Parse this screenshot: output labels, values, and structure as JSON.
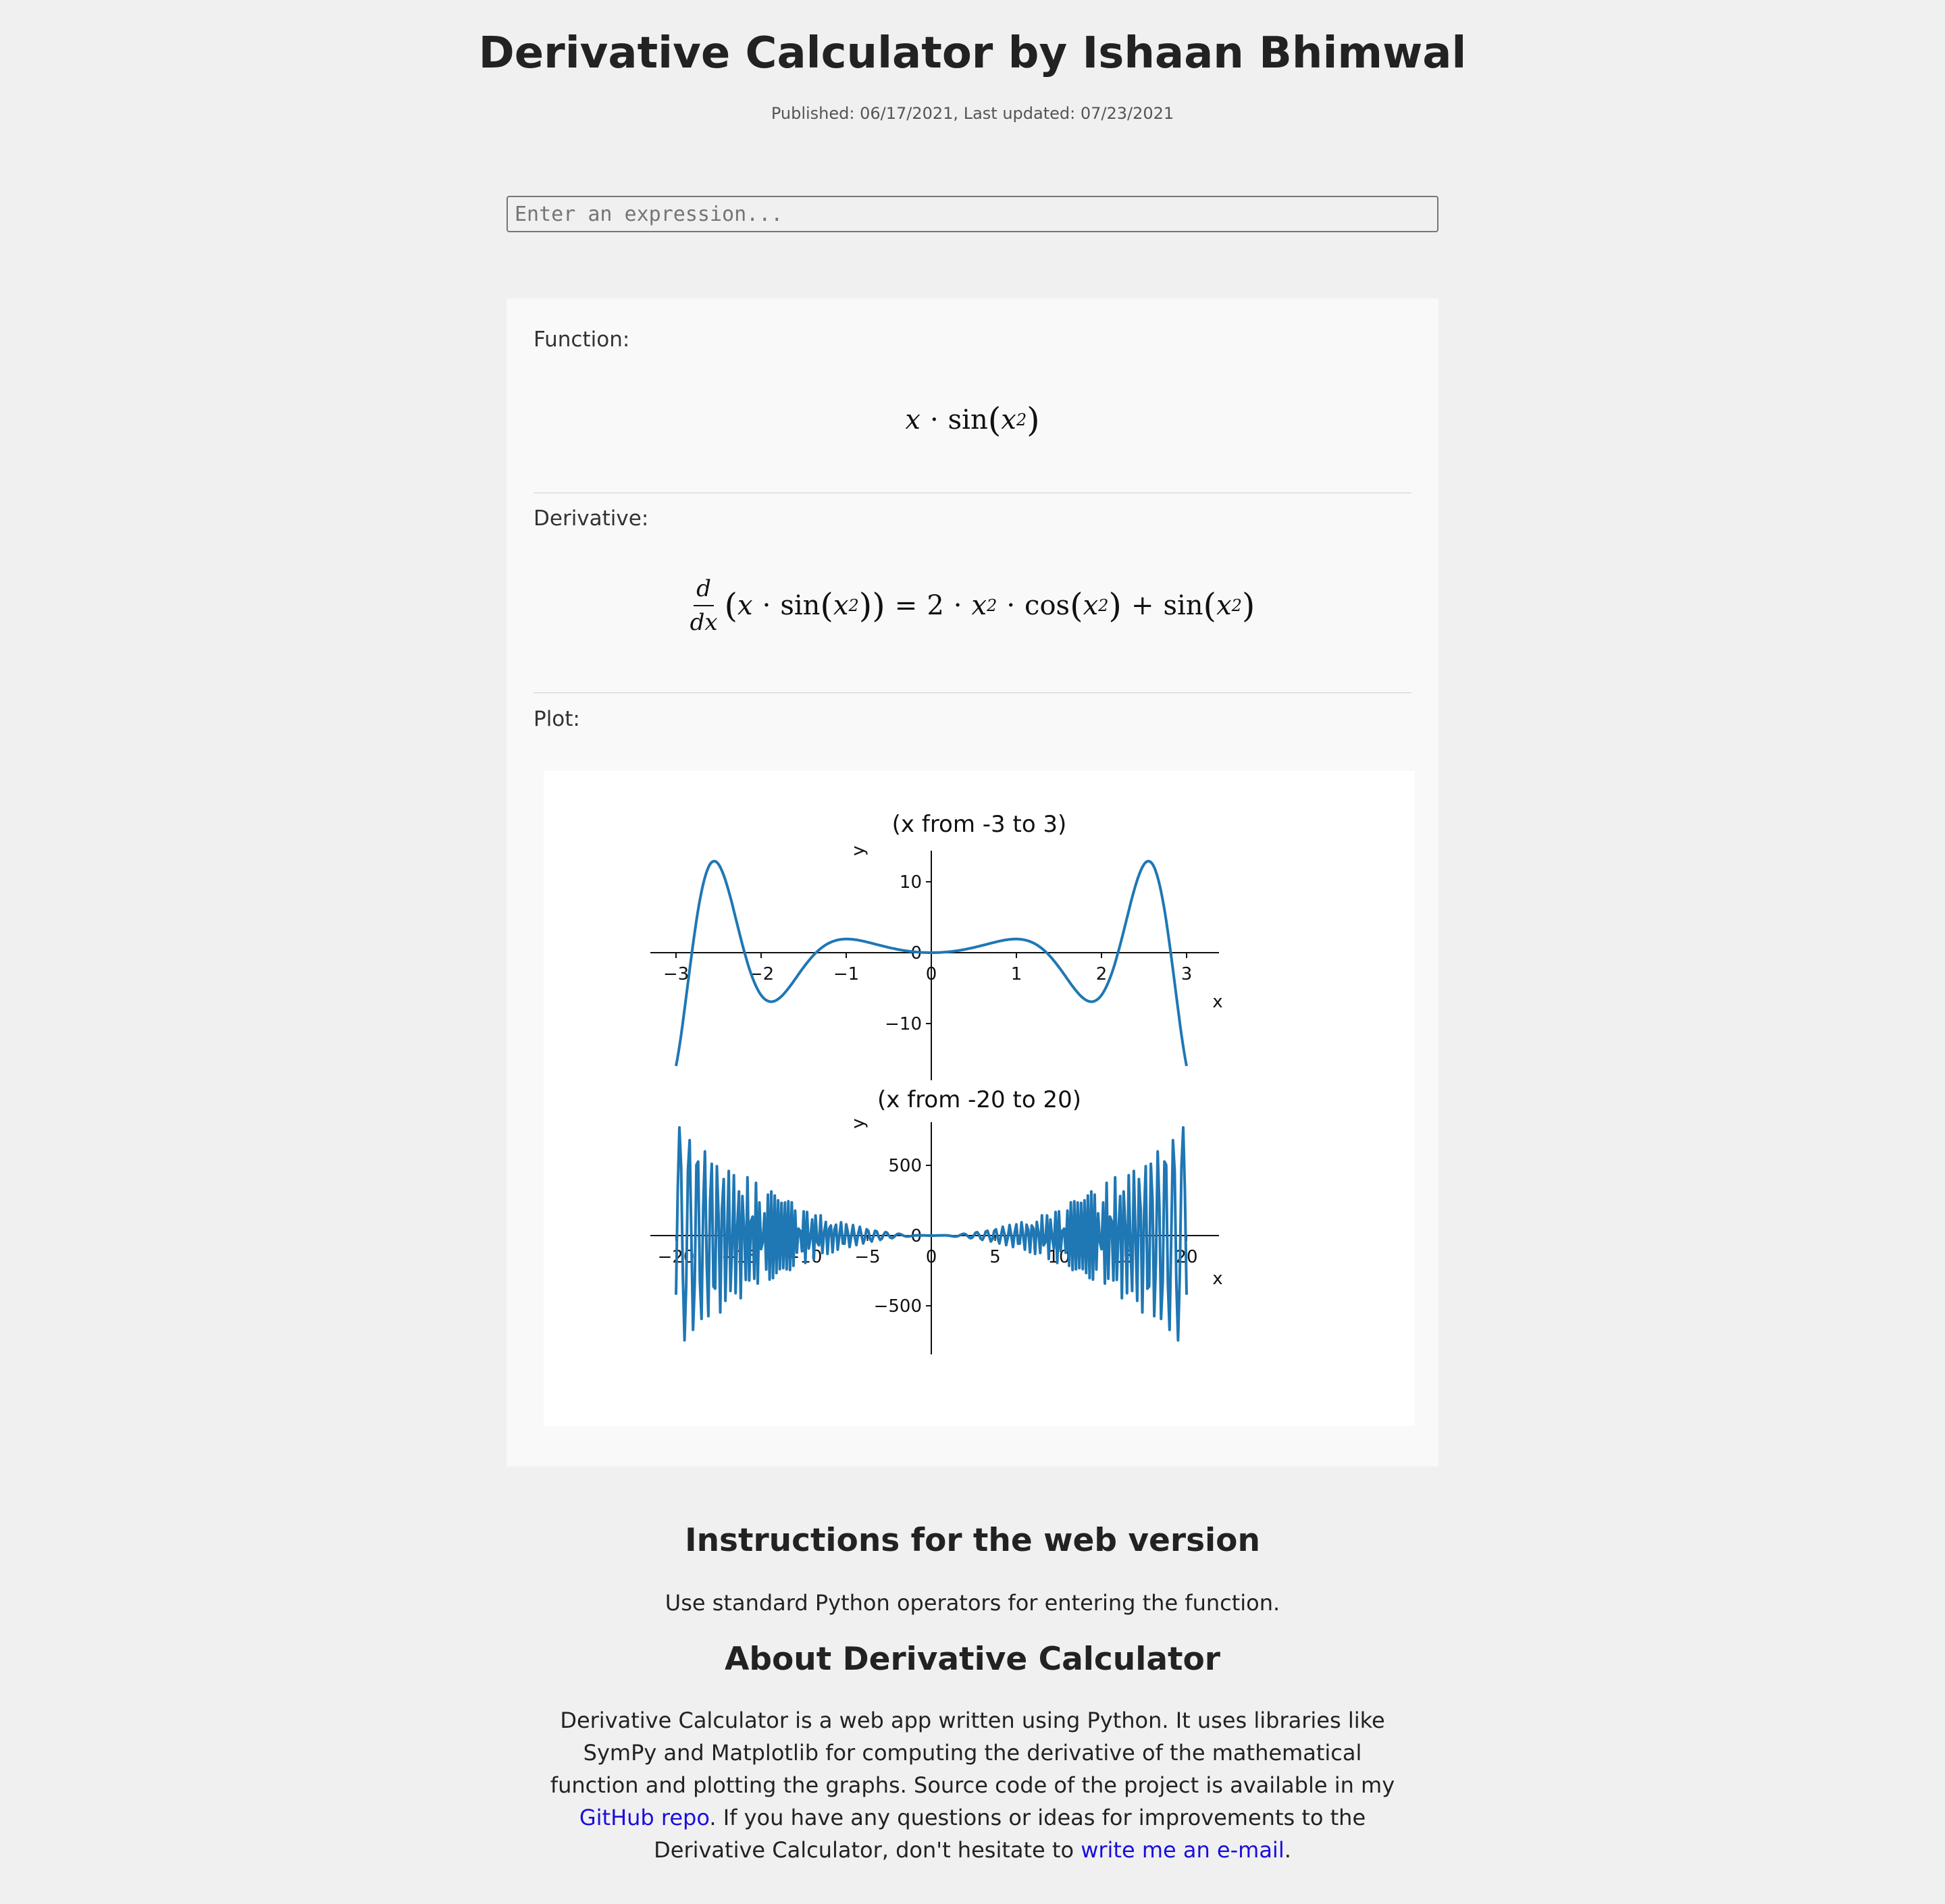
{
  "header": {
    "title": "Derivative Calculator by Ishaan Bhimwal",
    "meta": "Published: 06/17/2021, Last updated: 07/23/2021"
  },
  "input": {
    "placeholder": "Enter an expression...",
    "value": ""
  },
  "result": {
    "function_label": "Function:",
    "derivative_label": "Derivative:",
    "plot_label": "Plot:",
    "function_latex": "x \\cdot \\sin(x^2)",
    "derivative_latex": "\\frac{d}{dx}(x \\cdot \\sin(x^2)) = 2 \\cdot x^2 \\cdot \\cos(x^2) + \\sin(x^2)"
  },
  "colors": {
    "background": "#f0f0f0",
    "card": "#f9f9f9",
    "plot_line": "#1f77b4",
    "link": "#1a0dde"
  },
  "chart_data": [
    {
      "type": "line",
      "title": "(x from -3 to 3)",
      "xlabel": "x",
      "ylabel": "y",
      "xlim": [
        -3,
        3
      ],
      "ylim": [
        -16,
        14
      ],
      "xticks": [
        "−3",
        "−2",
        "−1",
        "0",
        "1",
        "2",
        "3"
      ],
      "yticks": [
        "10",
        "0",
        "−10"
      ],
      "expression": "2*x**2*cos(x**2) + sin(x**2)",
      "samples": 400
    },
    {
      "type": "line",
      "title": "(x from -20 to 20)",
      "xlabel": "x",
      "ylabel": "y",
      "xlim": [
        -20,
        20
      ],
      "ylim": [
        -800,
        800
      ],
      "xticks": [
        "−20",
        "−15",
        "−10",
        "−5",
        "0",
        "5",
        "10",
        "15",
        "20"
      ],
      "yticks": [
        "500",
        "0",
        "−500"
      ],
      "expression": "2*x**2*cos(x**2) + sin(x**2)",
      "samples": 300
    }
  ],
  "instructions": {
    "heading": "Instructions for the web version",
    "text": "Use standard Python operators for entering the function."
  },
  "about": {
    "heading": "About Derivative Calculator",
    "text_before_repo": "Derivative Calculator is a web app written using Python. It uses libraries like SymPy and Matplotlib for computing the derivative of the mathematical function and plotting the graphs. Source code of the project is available in my ",
    "repo_link": "GitHub repo",
    "text_after_repo": ". If you have any questions or ideas for improvements to the Derivative Calculator, don't hesitate to ",
    "email_link": "write me an e-mail",
    "text_end": "."
  }
}
